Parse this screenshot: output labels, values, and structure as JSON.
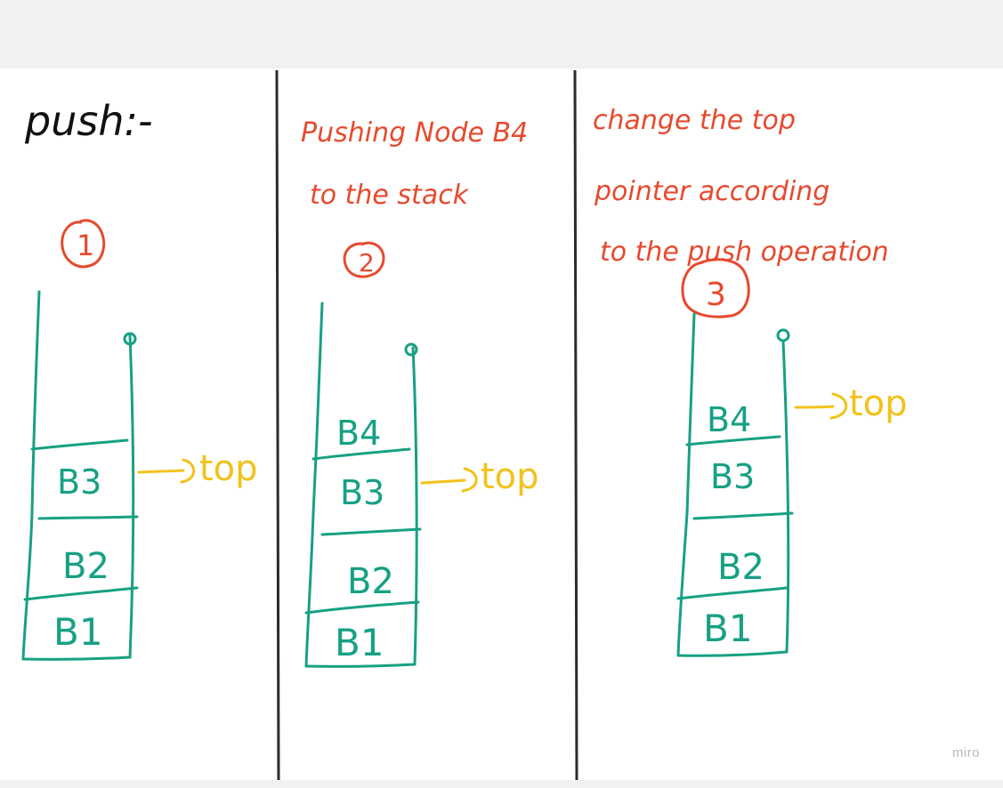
{
  "colors": {
    "background": "#f1f1f1",
    "board": "#ffffff",
    "divider": "#2b2b2b",
    "black_ink": "#111111",
    "red_ink": "#e64a2e",
    "teal_ink": "#17a084",
    "yellow_ink": "#f2c21b",
    "watermark": "#b9b9b9"
  },
  "panel1": {
    "title": "push:-",
    "step": "1",
    "blocks": [
      "B3",
      "B2",
      "B1"
    ],
    "pointer_label": "top"
  },
  "panel2": {
    "note_line1": "Pushing Node B4",
    "note_line2": "to the stack",
    "step": "2",
    "blocks": [
      "B4",
      "B3",
      "B2",
      "B1"
    ],
    "pointer_label": "top"
  },
  "panel3": {
    "note_line1": "change the top",
    "note_line2": "pointer according",
    "note_line3": "to the push operation",
    "step": "3",
    "blocks": [
      "B4",
      "B3",
      "B2",
      "B1"
    ],
    "pointer_label": "top"
  },
  "watermark": "miro"
}
